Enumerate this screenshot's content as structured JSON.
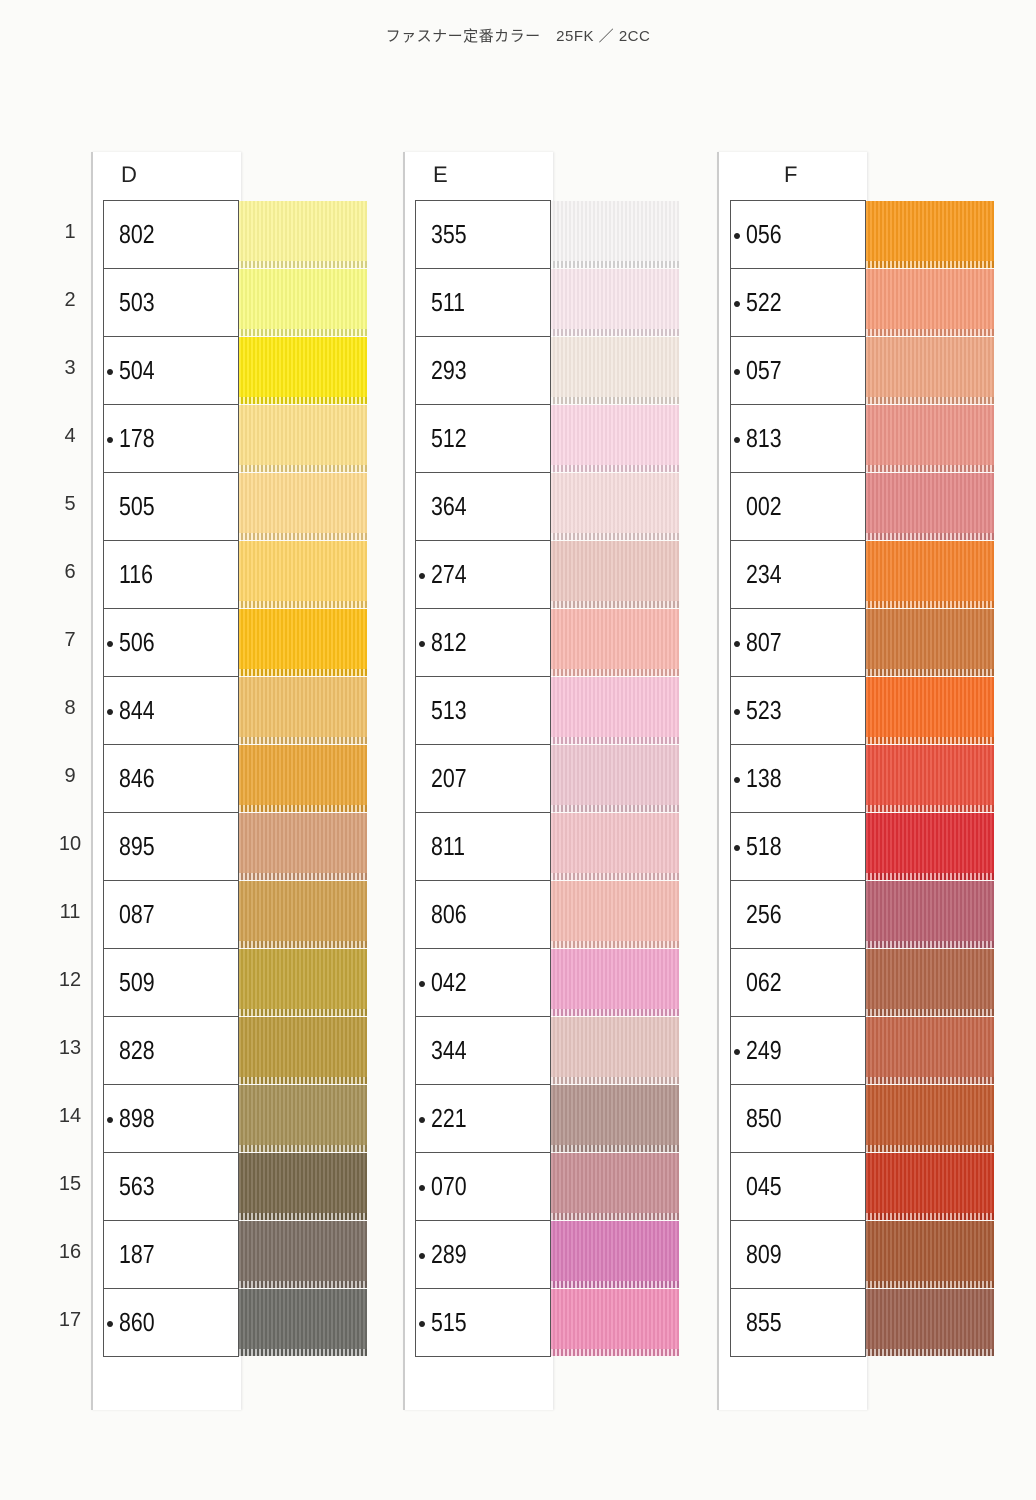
{
  "title": "ファスナー定番カラー　25FK ／ 2CC",
  "row_numbers": [
    "1",
    "2",
    "3",
    "4",
    "5",
    "6",
    "7",
    "8",
    "9",
    "10",
    "11",
    "12",
    "13",
    "14",
    "15",
    "16",
    "17"
  ],
  "columns": [
    {
      "label": "D",
      "items": [
        {
          "code": "802",
          "marked": false,
          "color": "#fbf59a"
        },
        {
          "code": "503",
          "marked": false,
          "color": "#f8fb84"
        },
        {
          "code": "504",
          "marked": true,
          "color": "#fde912"
        },
        {
          "code": "178",
          "marked": true,
          "color": "#fbdf8a"
        },
        {
          "code": "505",
          "marked": false,
          "color": "#fcd98e"
        },
        {
          "code": "116",
          "marked": false,
          "color": "#fdd469"
        },
        {
          "code": "506",
          "marked": true,
          "color": "#fdbf18"
        },
        {
          "code": "844",
          "marked": true,
          "color": "#eec06a"
        },
        {
          "code": "846",
          "marked": false,
          "color": "#e9a63a"
        },
        {
          "code": "895",
          "marked": false,
          "color": "#d7a07a"
        },
        {
          "code": "087",
          "marked": false,
          "color": "#cfa052"
        },
        {
          "code": "509",
          "marked": false,
          "color": "#c2a43c"
        },
        {
          "code": "828",
          "marked": false,
          "color": "#b99a3e"
        },
        {
          "code": "898",
          "marked": true,
          "color": "#a59158"
        },
        {
          "code": "563",
          "marked": false,
          "color": "#77684b"
        },
        {
          "code": "187",
          "marked": false,
          "color": "#7a6d63"
        },
        {
          "code": "860",
          "marked": true,
          "color": "#6b6b66"
        }
      ]
    },
    {
      "label": "E",
      "items": [
        {
          "code": "355",
          "marked": false,
          "color": "#f6f4f4"
        },
        {
          "code": "511",
          "marked": false,
          "color": "#f8e6ec"
        },
        {
          "code": "293",
          "marked": false,
          "color": "#f3e8e0"
        },
        {
          "code": "512",
          "marked": false,
          "color": "#fad6e4"
        },
        {
          "code": "364",
          "marked": false,
          "color": "#f5dcdc"
        },
        {
          "code": "274",
          "marked": true,
          "color": "#ebc8c2"
        },
        {
          "code": "812",
          "marked": true,
          "color": "#f8b8b0"
        },
        {
          "code": "513",
          "marked": false,
          "color": "#f8c4d8"
        },
        {
          "code": "207",
          "marked": false,
          "color": "#ecc6d0"
        },
        {
          "code": "811",
          "marked": false,
          "color": "#f1c3c8"
        },
        {
          "code": "806",
          "marked": false,
          "color": "#f3bcb4"
        },
        {
          "code": "042",
          "marked": true,
          "color": "#f0a6cc"
        },
        {
          "code": "344",
          "marked": false,
          "color": "#e5c5c0"
        },
        {
          "code": "221",
          "marked": true,
          "color": "#b49690"
        },
        {
          "code": "070",
          "marked": true,
          "color": "#c89096"
        },
        {
          "code": "289",
          "marked": true,
          "color": "#d87eb8"
        },
        {
          "code": "515",
          "marked": true,
          "color": "#f090b8"
        }
      ]
    },
    {
      "label": "F",
      "items": [
        {
          "code": "056",
          "marked": true,
          "color": "#f79a20"
        },
        {
          "code": "522",
          "marked": true,
          "color": "#f59c7a"
        },
        {
          "code": "057",
          "marked": true,
          "color": "#eda684"
        },
        {
          "code": "813",
          "marked": true,
          "color": "#ea9488"
        },
        {
          "code": "002",
          "marked": false,
          "color": "#e28888"
        },
        {
          "code": "234",
          "marked": false,
          "color": "#f3822e"
        },
        {
          "code": "807",
          "marked": true,
          "color": "#cf7a3e"
        },
        {
          "code": "523",
          "marked": true,
          "color": "#f86e26"
        },
        {
          "code": "138",
          "marked": true,
          "color": "#e9503e"
        },
        {
          "code": "518",
          "marked": true,
          "color": "#de2f36"
        },
        {
          "code": "256",
          "marked": false,
          "color": "#b86070"
        },
        {
          "code": "062",
          "marked": false,
          "color": "#b0664a"
        },
        {
          "code": "249",
          "marked": true,
          "color": "#c4664a"
        },
        {
          "code": "850",
          "marked": false,
          "color": "#c05a30"
        },
        {
          "code": "045",
          "marked": false,
          "color": "#ca3a22"
        },
        {
          "code": "809",
          "marked": false,
          "color": "#a65a36"
        },
        {
          "code": "855",
          "marked": false,
          "color": "#9a604e"
        }
      ]
    }
  ]
}
